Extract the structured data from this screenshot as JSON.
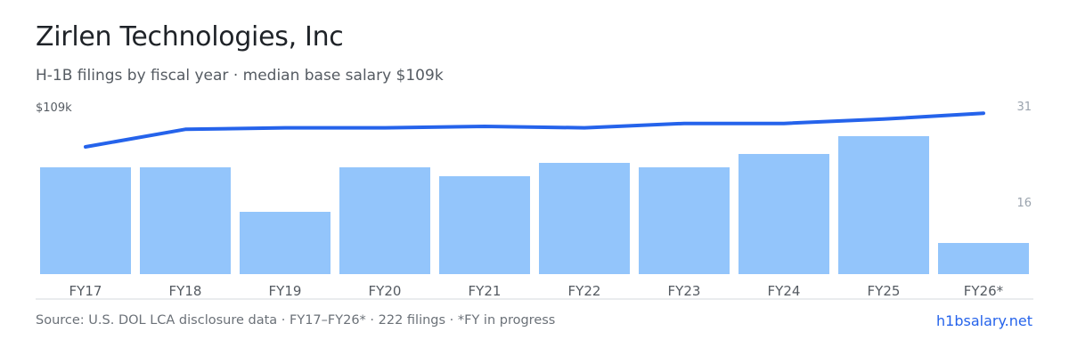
{
  "title": "Zirlen Technologies, Inc",
  "subtitle": "H-1B filings by fiscal year · median base salary $109k",
  "footer": {
    "source": "Source: U.S. DOL LCA disclosure data · FY17–FY26* · 222 filings · *FY in progress",
    "brand": "h1bsalary.net"
  },
  "colors": {
    "bar": "#93c5fb",
    "line": "#2563eb",
    "axis": "#d6d9dd",
    "tick_text": "#555b62",
    "right_axis_text": "#9aa3ad"
  },
  "chart_data": {
    "type": "bar",
    "categories": [
      "FY17",
      "FY18",
      "FY19",
      "FY20",
      "FY21",
      "FY22",
      "FY23",
      "FY24",
      "FY25",
      "FY26*"
    ],
    "series": [
      {
        "type": "bar",
        "axis": "right",
        "values": [
          24,
          24,
          14,
          24,
          22,
          25,
          24,
          27,
          31,
          7
        ]
      },
      {
        "type": "line",
        "axis": "left",
        "values": [
          95,
          101,
          101.5,
          101.5,
          102,
          101.5,
          103,
          103,
          104.5,
          106.5
        ]
      }
    ],
    "left_axis": {
      "label": "$109k",
      "max": 109
    },
    "right_axis": {
      "ticks": [
        31,
        16
      ],
      "ylim": [
        0,
        31
      ]
    },
    "grid": false,
    "legend": "none"
  }
}
